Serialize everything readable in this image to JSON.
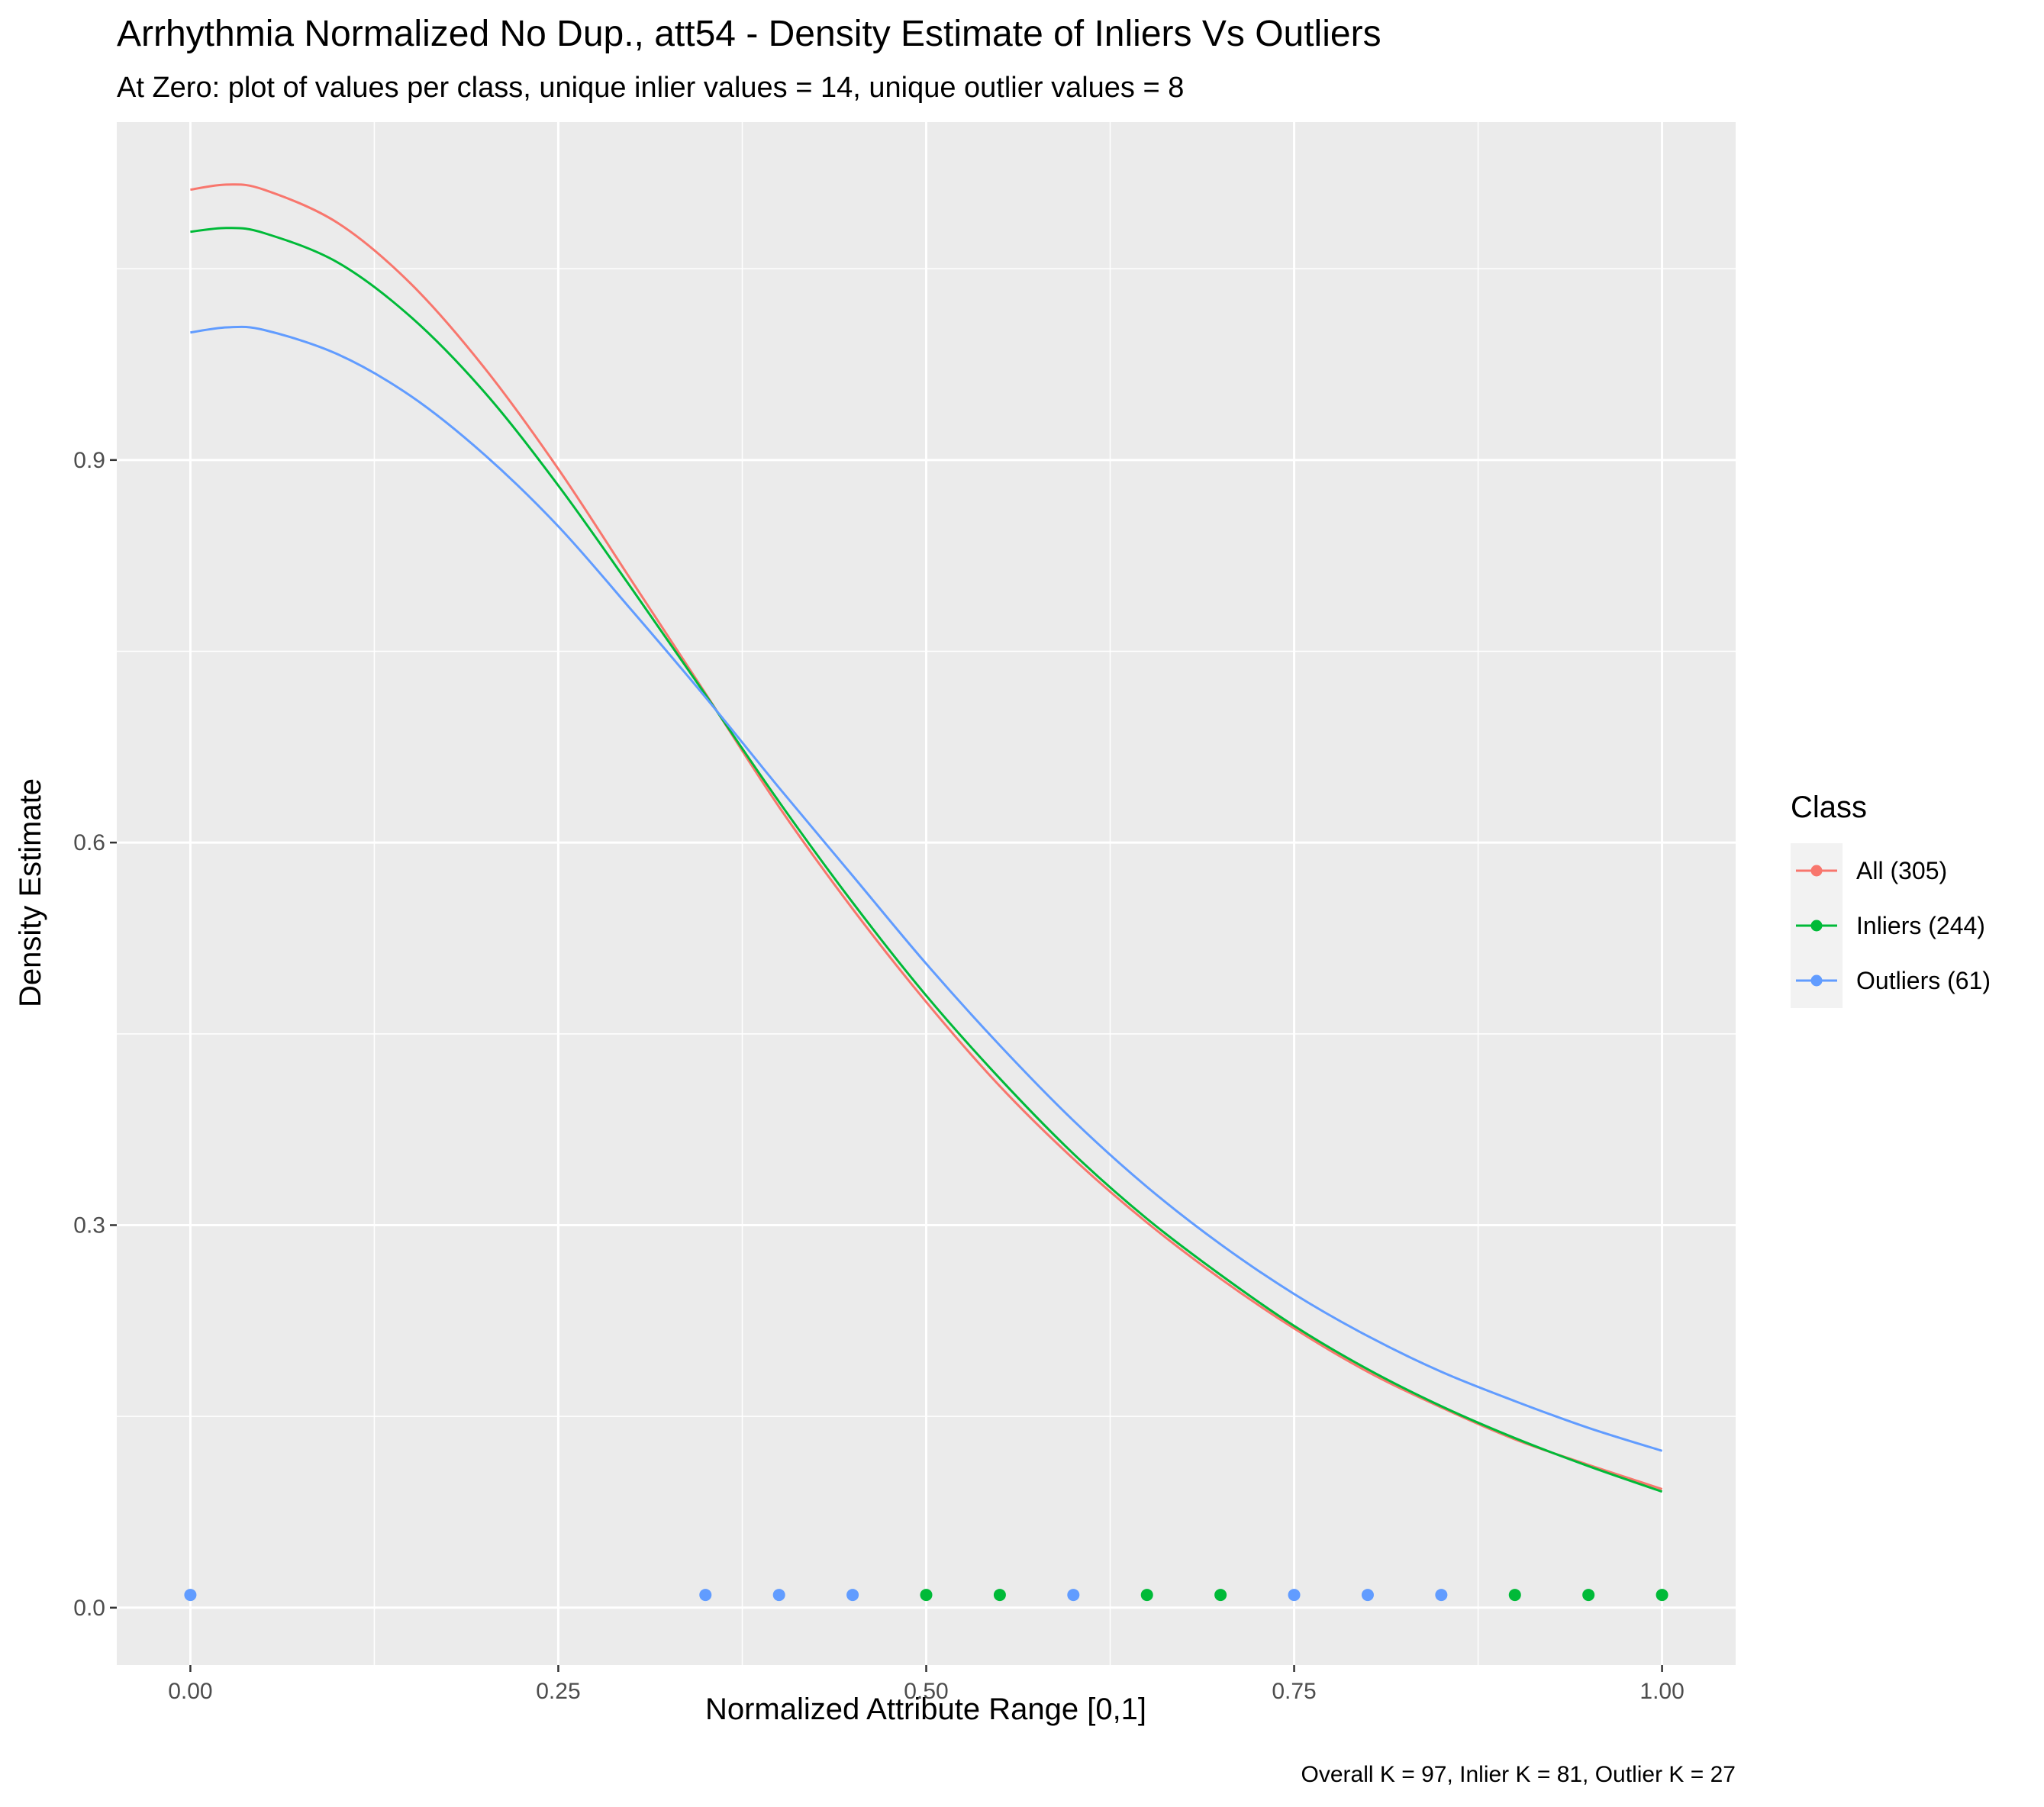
{
  "chart_data": {
    "type": "line",
    "title": "Arrhythmia Normalized No Dup., att54 - Density Estimate of Inliers Vs Outliers",
    "subtitle": "At Zero: plot of values per class, unique inlier values = 14, unique outlier values = 8",
    "xlabel": "Normalized Attribute Range [0,1]",
    "ylabel": "Density Estimate",
    "caption": "Overall K = 97, Inlier K = 81, Outlier K = 27",
    "xlim": [
      -0.05,
      1.05
    ],
    "ylim": [
      -0.045,
      1.165
    ],
    "x_ticks": [
      0.0,
      0.25,
      0.5,
      0.75,
      1.0
    ],
    "x_tick_labels": [
      "0.00",
      "0.25",
      "0.50",
      "0.75",
      "1.00"
    ],
    "y_ticks": [
      0.0,
      0.3,
      0.6,
      0.9
    ],
    "y_tick_labels": [
      "0.0",
      "0.3",
      "0.6",
      "0.9"
    ],
    "grid": true,
    "legend": {
      "title": "Class",
      "position": "right",
      "entries": [
        "All (305)",
        "Inliers (244)",
        "Outliers (61)"
      ]
    },
    "series": [
      {
        "name": "All (305)",
        "color": "#F8766D",
        "x": [
          0.0,
          0.025,
          0.05,
          0.1,
          0.15,
          0.2,
          0.25,
          0.3,
          0.35,
          0.4,
          0.45,
          0.5,
          0.55,
          0.6,
          0.65,
          0.7,
          0.75,
          0.8,
          0.85,
          0.9,
          0.95,
          1.0
        ],
        "y": [
          1.112,
          1.116,
          1.112,
          1.086,
          1.038,
          0.972,
          0.893,
          0.805,
          0.717,
          0.628,
          0.548,
          0.475,
          0.409,
          0.352,
          0.302,
          0.258,
          0.219,
          0.185,
          0.157,
          0.132,
          0.112,
          0.093
        ]
      },
      {
        "name": "Inliers (244)",
        "color": "#00BA38",
        "x": [
          0.0,
          0.025,
          0.05,
          0.1,
          0.15,
          0.2,
          0.25,
          0.3,
          0.35,
          0.4,
          0.45,
          0.5,
          0.55,
          0.6,
          0.65,
          0.7,
          0.75,
          0.8,
          0.85,
          0.9,
          0.95,
          1.0
        ],
        "y": [
          1.079,
          1.082,
          1.078,
          1.055,
          1.012,
          0.953,
          0.88,
          0.799,
          0.716,
          0.632,
          0.553,
          0.48,
          0.415,
          0.356,
          0.305,
          0.261,
          0.221,
          0.187,
          0.158,
          0.133,
          0.111,
          0.091
        ]
      },
      {
        "name": "Outliers (61)",
        "color": "#619CFF",
        "x": [
          0.0,
          0.025,
          0.05,
          0.1,
          0.15,
          0.2,
          0.25,
          0.3,
          0.35,
          0.4,
          0.45,
          0.5,
          0.55,
          0.6,
          0.65,
          0.7,
          0.75,
          0.8,
          0.85,
          0.9,
          0.95,
          1.0
        ],
        "y": [
          1.0,
          1.004,
          1.002,
          0.983,
          0.95,
          0.904,
          0.848,
          0.782,
          0.714,
          0.643,
          0.574,
          0.505,
          0.441,
          0.382,
          0.33,
          0.285,
          0.246,
          0.213,
          0.185,
          0.162,
          0.141,
          0.123
        ]
      }
    ],
    "rug_points": [
      {
        "x": 0.0,
        "class": "Outliers (61)"
      },
      {
        "x": 0.35,
        "class": "Outliers (61)"
      },
      {
        "x": 0.4,
        "class": "Outliers (61)"
      },
      {
        "x": 0.45,
        "class": "Outliers (61)"
      },
      {
        "x": 0.5,
        "class": "Inliers (244)"
      },
      {
        "x": 0.55,
        "class": "Inliers (244)"
      },
      {
        "x": 0.6,
        "class": "Outliers (61)"
      },
      {
        "x": 0.65,
        "class": "Inliers (244)"
      },
      {
        "x": 0.7,
        "class": "Inliers (244)"
      },
      {
        "x": 0.75,
        "class": "Outliers (61)"
      },
      {
        "x": 0.8,
        "class": "Outliers (61)"
      },
      {
        "x": 0.85,
        "class": "Outliers (61)"
      },
      {
        "x": 0.9,
        "class": "Inliers (244)"
      },
      {
        "x": 0.95,
        "class": "Inliers (244)"
      },
      {
        "x": 1.0,
        "class": "Inliers (244)"
      }
    ],
    "rug_y": 0.01,
    "colors": {
      "panel_background": "#EBEBEB",
      "grid": "#FFFFFF",
      "all": "#F8766D",
      "inliers": "#00BA38",
      "outliers": "#619CFF"
    }
  }
}
